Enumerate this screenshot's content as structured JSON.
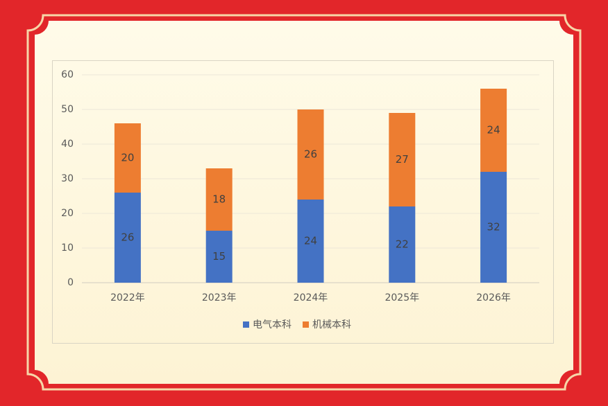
{
  "chart_data": {
    "type": "stacked_bar",
    "categories": [
      "2022年",
      "2023年",
      "2024年",
      "2025年",
      "2026年"
    ],
    "series": [
      {
        "name": "电气本科",
        "color": "#4472c4",
        "values": [
          26,
          15,
          24,
          22,
          32
        ]
      },
      {
        "name": "机械本科",
        "color": "#ed7d31",
        "values": [
          20,
          18,
          26,
          27,
          24
        ]
      }
    ],
    "ylim": [
      0,
      60
    ],
    "yticks": [
      0,
      10,
      20,
      30,
      40,
      50,
      60
    ],
    "grid": true,
    "legend": "bottom"
  }
}
